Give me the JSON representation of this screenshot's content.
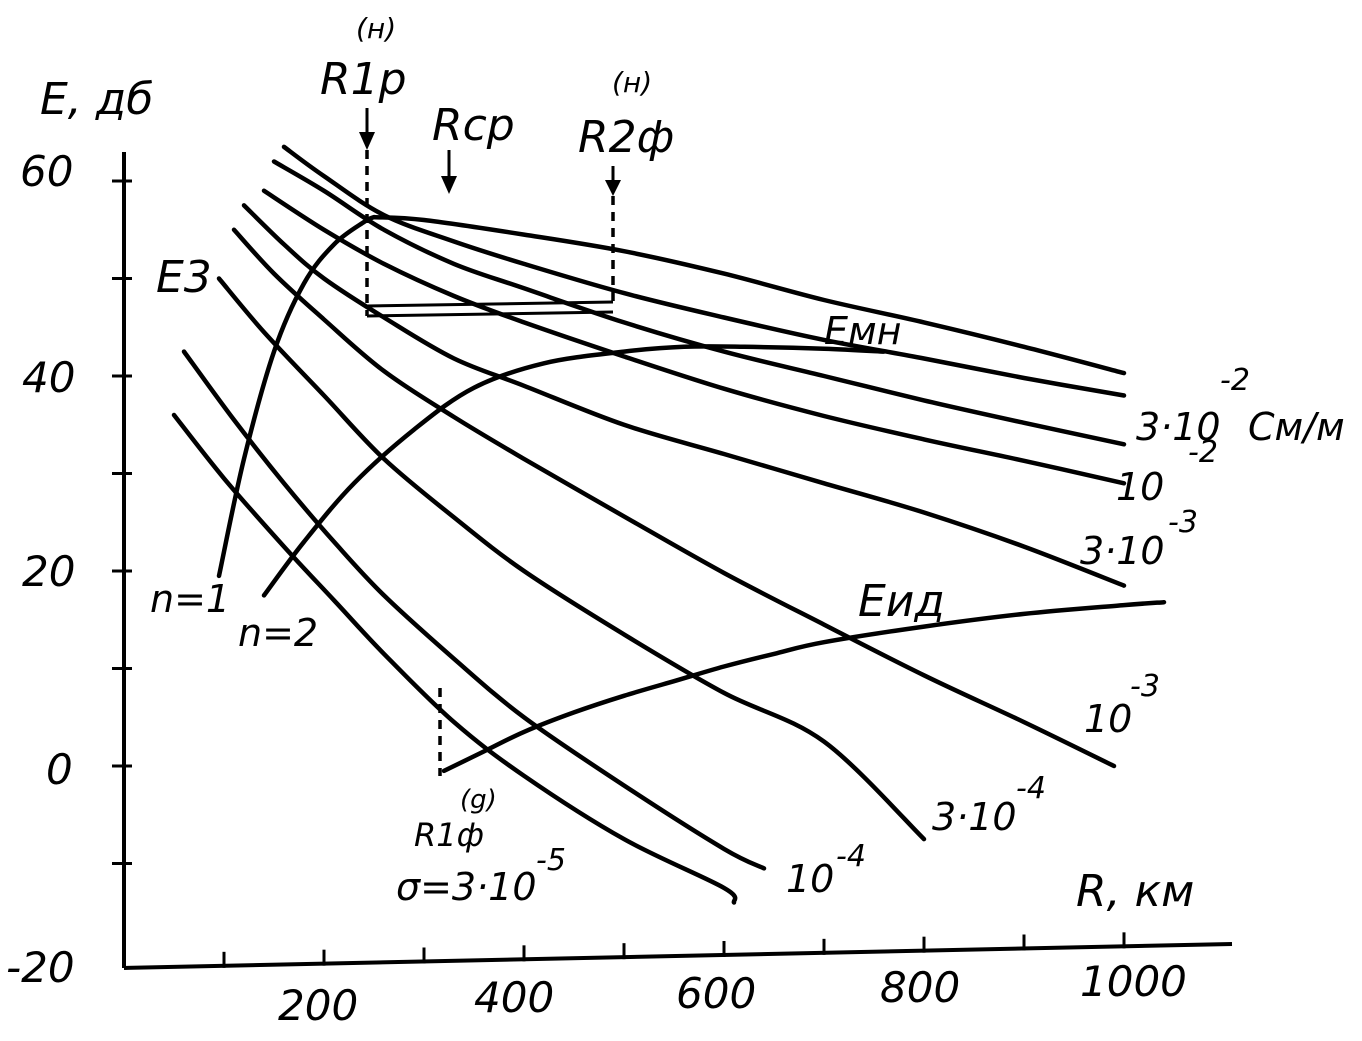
{
  "chart_data": {
    "type": "line",
    "ylabel": "E, дб",
    "xlabel": "R, км",
    "xlim": [
      0,
      1080
    ],
    "ylim": [
      -20,
      60
    ],
    "x_tick_labels": [
      "200",
      "400",
      "600",
      "800",
      "1000"
    ],
    "y_tick_labels": [
      "60",
      "40",
      "20",
      "0",
      "-20"
    ],
    "x_ticks": [
      100,
      200,
      300,
      400,
      500,
      600,
      700,
      800,
      900,
      1000
    ],
    "y_ticks": [
      -10,
      0,
      10,
      20,
      30,
      40,
      50,
      60
    ],
    "conductivity_unit": "См/м",
    "series": [
      {
        "name": "3·10⁻²",
        "x": [
          160,
          200,
          260,
          330,
          400,
          500,
          600,
          700,
          800,
          900,
          1000
        ],
        "y": [
          63.5,
          60.5,
          56.5,
          53.8,
          51.5,
          48.5,
          46,
          43.7,
          41.8,
          39.8,
          38
        ]
      },
      {
        "name": "10⁻²",
        "x": [
          150,
          200,
          260,
          330,
          400,
          500,
          600,
          700,
          800,
          900,
          1000
        ],
        "y": [
          62,
          59,
          55,
          51.5,
          49,
          45.5,
          42.5,
          40,
          37.5,
          35.2,
          33
        ]
      },
      {
        "name": "10⁻²",
        "x": [
          140,
          200,
          260,
          330,
          400,
          500,
          600,
          700,
          800,
          900,
          1000
        ],
        "y": [
          59,
          55,
          51.5,
          48.2,
          45.5,
          42,
          38.7,
          35.9,
          33.5,
          31.3,
          29
        ]
      },
      {
        "name": "3·10⁻³",
        "x": [
          120,
          160,
          200,
          260,
          330,
          400,
          500,
          600,
          700,
          800,
          900,
          1000
        ],
        "y": [
          57.5,
          53.5,
          50,
          46,
          41.8,
          39,
          35,
          32,
          29,
          26,
          22.5,
          18.5
        ]
      },
      {
        "name": "10⁻³",
        "x": [
          110,
          150,
          200,
          260,
          330,
          400,
          500,
          600,
          700,
          800,
          900,
          990
        ],
        "y": [
          55,
          50.5,
          45.8,
          40.5,
          35.8,
          31.5,
          25.6,
          19.8,
          14.5,
          9.3,
          4.5,
          0
        ]
      },
      {
        "name": "3·10⁻⁴",
        "x": [
          95,
          140,
          200,
          260,
          330,
          400,
          500,
          600,
          700,
          800
        ],
        "y": [
          50,
          44.5,
          38,
          31.5,
          25.5,
          20,
          13.5,
          7.5,
          2.5,
          -7.5
        ]
      },
      {
        "name": "10⁻⁴",
        "x": [
          60,
          110,
          160,
          210,
          260,
          330,
          400,
          500,
          600,
          640
        ],
        "y": [
          42.5,
          35.5,
          29,
          23,
          17.5,
          11,
          5,
          -2,
          -8.5,
          -10.5
        ]
      },
      {
        "name": "σ=3·10⁻⁵",
        "x": [
          50,
          100,
          160,
          210,
          260,
          330,
          400,
          500,
          600,
          610
        ],
        "y": [
          36,
          29.5,
          22.5,
          17,
          11.5,
          4.5,
          -1,
          -7.5,
          -12.5,
          -14
        ]
      },
      {
        "name": "Eмн",
        "x": [
          250,
          300,
          400,
          500,
          600,
          700,
          800,
          900,
          1000
        ],
        "y": [
          56.3,
          56,
          54.5,
          52.8,
          50.5,
          47.8,
          45.5,
          43,
          40.3
        ]
      },
      {
        "name": "Eид",
        "x": [
          320,
          360,
          400,
          450,
          500,
          550,
          600,
          650,
          700,
          800,
          900,
          1000,
          1040
        ],
        "y": [
          -0.5,
          1.5,
          3.5,
          5.5,
          7.2,
          8.7,
          10.2,
          11.5,
          12.7,
          14.3,
          15.6,
          16.5,
          16.8
        ]
      },
      {
        "name": "n=1",
        "x": [
          95,
          120,
          150,
          180,
          210,
          240,
          250
        ],
        "y": [
          19.5,
          31.5,
          42.5,
          49.5,
          53.5,
          55.8,
          56.3
        ]
      },
      {
        "name": "n=2",
        "x": [
          140,
          180,
          230,
          290,
          350,
          420,
          500,
          560,
          620,
          700,
          760
        ],
        "y": [
          17.5,
          23,
          29,
          34.5,
          38.8,
          41.3,
          42.5,
          43,
          43,
          42.8,
          42.5
        ]
      }
    ],
    "markers": {
      "R1p_top": "R1p",
      "R1p_sup": "(н)",
      "Rcp": "Rcp",
      "R2f": "R2ф",
      "R2f_sup": "(н)",
      "R1f": "R1ф",
      "R1f_sup": "(g)"
    },
    "labels": {
      "E3": "E3",
      "Emn": "Eмн",
      "Eid": "Eид",
      "n1": "n=1",
      "n2": "n=2",
      "c_3e2": "3·10",
      "c_3e2_exp": "-2",
      "c_unit": "См/м",
      "c_1e2a": "10",
      "c_1e2a_exp": "-2",
      "c_3e3": "3·10",
      "c_3e3_exp": "-3",
      "c_1e3": "10",
      "c_1e3_exp": "-3",
      "c_3e4": "3·10",
      "c_3e4_exp": "-4",
      "c_1e4": "10",
      "c_1e4_exp": "-4",
      "c_3e5": "σ=3·10",
      "c_3e5_exp": "-5"
    }
  }
}
